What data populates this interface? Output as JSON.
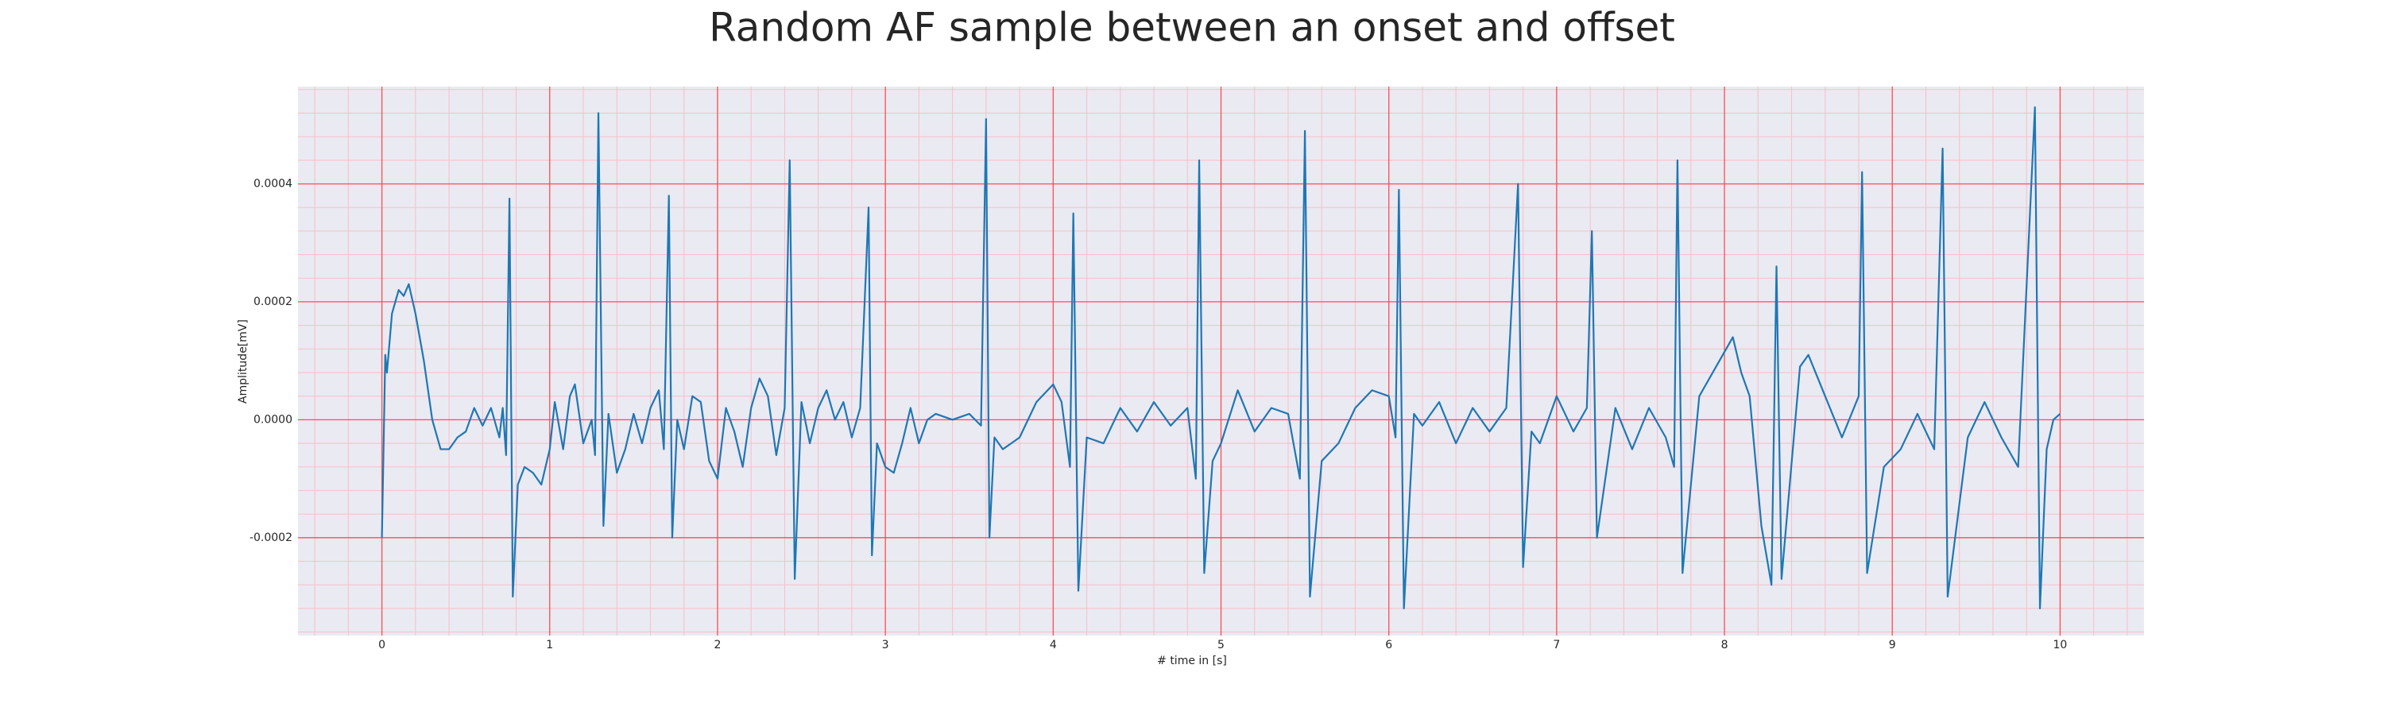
{
  "chart_data": {
    "type": "line",
    "title": "Random AF sample between an onset and offset",
    "xlabel": "# time in [s]",
    "ylabel": "Amplitude[mV]",
    "xlim": [
      -0.5,
      10.5
    ],
    "ylim": [
      -0.000366,
      0.000565
    ],
    "xticks": [
      0,
      1,
      2,
      3,
      4,
      5,
      6,
      7,
      8,
      9,
      10
    ],
    "yticks": [
      -0.0002,
      {
        "value": 0,
        "label": "0.0000"
      },
      0.0002,
      0.0004
    ],
    "grid": true,
    "grid_color": "#ff4d4d",
    "minor_grid_color": "#f7bfc8",
    "background": "#eaeaf2",
    "xminor": [
      -0.4,
      -0.2,
      0.2,
      0.4,
      0.6,
      0.8,
      1.2,
      1.4,
      1.6,
      1.8,
      2.2,
      2.4,
      2.6,
      2.8,
      3.2,
      3.4,
      3.6,
      3.8,
      4.2,
      4.4,
      4.6,
      4.8,
      5.2,
      5.4,
      5.6,
      5.8,
      6.2,
      6.4,
      6.6,
      6.8,
      7.2,
      7.4,
      7.6,
      7.8,
      8.2,
      8.4,
      8.6,
      8.8,
      9.2,
      9.4,
      9.6,
      9.8,
      10.2,
      10.4
    ],
    "yminor": [
      -0.00036,
      -0.00032,
      -0.00028,
      -0.00024,
      -0.00016,
      -0.00012,
      -8e-05,
      -4e-05,
      4e-05,
      8e-05,
      0.00012,
      0.00016,
      0.00024,
      0.00028,
      0.00032,
      0.00036,
      0.00044,
      0.00048,
      0.00052,
      0.00056
    ],
    "series": [
      {
        "color": "#1f77b4",
        "x": [
          0,
          0.02,
          0.03,
          0.06,
          0.1,
          0.13,
          0.16,
          0.2,
          0.25,
          0.3,
          0.35,
          0.4,
          0.45,
          0.5,
          0.55,
          0.6,
          0.65,
          0.7,
          0.72,
          0.74,
          0.76,
          0.78,
          0.81,
          0.85,
          0.9,
          0.95,
          1,
          1.03,
          1.08,
          1.12,
          1.15,
          1.2,
          1.25,
          1.27,
          1.29,
          1.32,
          1.35,
          1.4,
          1.45,
          1.5,
          1.55,
          1.6,
          1.65,
          1.68,
          1.71,
          1.73,
          1.76,
          1.8,
          1.85,
          1.9,
          1.95,
          2,
          2.05,
          2.1,
          2.15,
          2.2,
          2.25,
          2.3,
          2.35,
          2.4,
          2.43,
          2.46,
          2.5,
          2.55,
          2.6,
          2.65,
          2.7,
          2.75,
          2.8,
          2.85,
          2.9,
          2.92,
          2.95,
          3,
          3.05,
          3.1,
          3.15,
          3.2,
          3.25,
          3.3,
          3.4,
          3.5,
          3.57,
          3.6,
          3.62,
          3.65,
          3.7,
          3.8,
          3.9,
          4,
          4.05,
          4.1,
          4.12,
          4.15,
          4.2,
          4.3,
          4.4,
          4.5,
          4.6,
          4.7,
          4.8,
          4.85,
          4.87,
          4.9,
          4.95,
          5,
          5.1,
          5.2,
          5.3,
          5.4,
          5.47,
          5.5,
          5.53,
          5.6,
          5.7,
          5.8,
          5.9,
          6,
          6.04,
          6.06,
          6.09,
          6.15,
          6.2,
          6.3,
          6.4,
          6.5,
          6.6,
          6.7,
          6.77,
          6.8,
          6.85,
          6.9,
          7,
          7.1,
          7.18,
          7.21,
          7.24,
          7.35,
          7.45,
          7.55,
          7.65,
          7.7,
          7.72,
          7.75,
          7.85,
          7.95,
          8.05,
          8.1,
          8.15,
          8.22,
          8.28,
          8.31,
          8.34,
          8.45,
          8.5,
          8.6,
          8.7,
          8.8,
          8.82,
          8.85,
          8.95,
          9.05,
          9.15,
          9.25,
          9.3,
          9.33,
          9.45,
          9.55,
          9.65,
          9.75,
          9.85,
          9.88,
          9.92,
          9.96,
          10
        ],
        "values": [
          -0.0002,
          0.00011,
          8e-05,
          0.00018,
          0.00022,
          0.00021,
          0.00023,
          0.00018,
          0.0001,
          0,
          -5e-05,
          -5e-05,
          -3e-05,
          -2e-05,
          2e-05,
          -1e-05,
          2e-05,
          -3e-05,
          2e-05,
          -6e-05,
          0.000375,
          -0.0003,
          -0.00011,
          -8e-05,
          -9e-05,
          -0.00011,
          -5e-05,
          3e-05,
          -5e-05,
          4e-05,
          6e-05,
          -4e-05,
          0,
          -6e-05,
          0.00052,
          -0.00018,
          1e-05,
          -9e-05,
          -5e-05,
          1e-05,
          -4e-05,
          2e-05,
          5e-05,
          -5e-05,
          0.00038,
          -0.0002,
          0,
          -5e-05,
          4e-05,
          3e-05,
          -7e-05,
          -0.0001,
          2e-05,
          -2e-05,
          -8e-05,
          2e-05,
          7e-05,
          4e-05,
          -6e-05,
          2e-05,
          0.00044,
          -0.00027,
          3e-05,
          -4e-05,
          2e-05,
          5e-05,
          0,
          3e-05,
          -3e-05,
          2e-05,
          0.00036,
          -0.00023,
          -4e-05,
          -8e-05,
          -9e-05,
          -4e-05,
          2e-05,
          -4e-05,
          0,
          1e-05,
          0,
          1e-05,
          -1e-05,
          0.00051,
          -0.0002,
          -3e-05,
          -5e-05,
          -3e-05,
          3e-05,
          6e-05,
          3e-05,
          -8e-05,
          0.00035,
          -0.00029,
          -3e-05,
          -4e-05,
          2e-05,
          -2e-05,
          3e-05,
          -1e-05,
          2e-05,
          -0.0001,
          0.00044,
          -0.00026,
          -7e-05,
          -4e-05,
          5e-05,
          -2e-05,
          2e-05,
          1e-05,
          -0.0001,
          0.00049,
          -0.0003,
          -7e-05,
          -4e-05,
          2e-05,
          5e-05,
          4e-05,
          -3e-05,
          0.00039,
          -0.00032,
          1e-05,
          -1e-05,
          3e-05,
          -4e-05,
          2e-05,
          -2e-05,
          2e-05,
          0.0004,
          -0.00025,
          -2e-05,
          -4e-05,
          4e-05,
          -2e-05,
          2e-05,
          0.00032,
          -0.0002,
          2e-05,
          -5e-05,
          2e-05,
          -3e-05,
          -8e-05,
          0.00044,
          -0.00026,
          4e-05,
          9e-05,
          0.00014,
          8e-05,
          4e-05,
          -0.00018,
          -0.00028,
          0.00026,
          -0.00027,
          9e-05,
          0.00011,
          4e-05,
          -3e-05,
          4e-05,
          0.00042,
          -0.00026,
          -8e-05,
          -5e-05,
          1e-05,
          -5e-05,
          0.00046,
          -0.0003,
          -3e-05,
          3e-05,
          -3e-05,
          -8e-05,
          0.00053,
          -0.00032,
          -5e-05,
          0,
          1e-05
        ]
      }
    ]
  }
}
